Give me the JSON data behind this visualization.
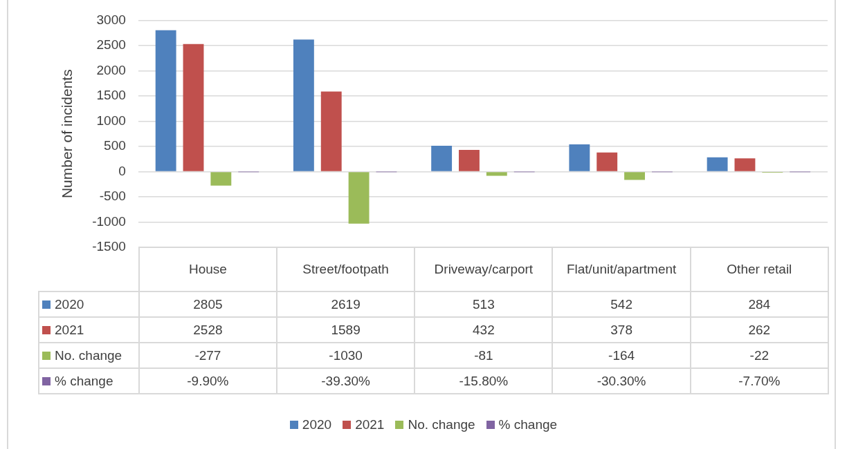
{
  "chart_data": {
    "type": "bar",
    "ylabel": "Number of incidents",
    "categories": [
      "House",
      "Street/footpath",
      "Driveway/carport",
      "Flat/unit/apartment",
      "Other retail"
    ],
    "series": [
      {
        "name": "2020",
        "color": "#4f81bd",
        "values": [
          2805,
          2619,
          513,
          542,
          284
        ],
        "value_labels": [
          "2805",
          "2619",
          "513",
          "542",
          "284"
        ]
      },
      {
        "name": "2021",
        "color": "#c0504d",
        "values": [
          2528,
          1589,
          432,
          378,
          262
        ],
        "value_labels": [
          "2528",
          "1589",
          "432",
          "378",
          "262"
        ]
      },
      {
        "name": "No. change",
        "color": "#9bbb59",
        "values": [
          -277,
          -1030,
          -81,
          -164,
          -22
        ],
        "value_labels": [
          "-277",
          "-1030",
          "-81",
          "-164",
          "-22"
        ]
      },
      {
        "name": "% change",
        "color": "#8064a2",
        "values": [
          -0.099,
          -0.393,
          -0.158,
          -0.303,
          -0.077
        ],
        "value_labels": [
          "-9.90%",
          "-39.30%",
          "-15.80%",
          "-30.30%",
          "-7.70%"
        ]
      }
    ],
    "ylim": [
      -1500,
      3000
    ],
    "yticks": [
      -1500,
      -1000,
      -500,
      0,
      500,
      1000,
      1500,
      2000,
      2500,
      3000
    ],
    "grid": "y",
    "legend": "bottom"
  }
}
